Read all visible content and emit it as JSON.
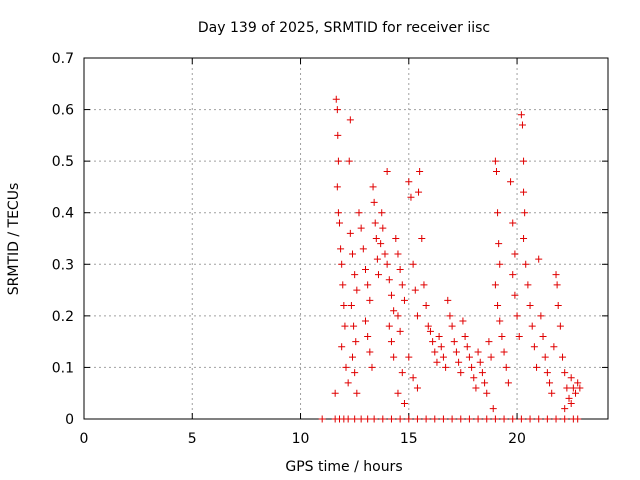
{
  "chart_data": {
    "type": "scatter",
    "title": "Day 139 of 2025, SRMTID for receiver iisc",
    "xlabel": "GPS time / hours",
    "ylabel": "SRMTID / TECUs",
    "xlim": [
      0,
      24.2
    ],
    "ylim": [
      0,
      0.7
    ],
    "xticks": [
      0,
      5,
      10,
      15,
      20
    ],
    "xtick_labels": [
      "0",
      "5",
      "10",
      "15",
      "20"
    ],
    "yticks": [
      0,
      0.1,
      0.2,
      0.3,
      0.4,
      0.5,
      0.6,
      0.7
    ],
    "ytick_labels": [
      "0",
      "0.1",
      "0.2",
      "0.3",
      "0.4",
      "0.5",
      "0.6",
      "0.7"
    ],
    "grid": true,
    "marker": "+",
    "color": "#e00000",
    "series": [
      {
        "name": "SRMTID",
        "points": [
          [
            11.0,
            0.0
          ],
          [
            11.6,
            0.0
          ],
          [
            11.8,
            0.0
          ],
          [
            12.0,
            0.0
          ],
          [
            12.2,
            0.0
          ],
          [
            12.5,
            0.0
          ],
          [
            12.8,
            0.0
          ],
          [
            13.1,
            0.0
          ],
          [
            13.4,
            0.0
          ],
          [
            13.8,
            0.0
          ],
          [
            14.2,
            0.0
          ],
          [
            14.6,
            0.0
          ],
          [
            15.0,
            0.0
          ],
          [
            15.4,
            0.0
          ],
          [
            15.8,
            0.0
          ],
          [
            16.2,
            0.0
          ],
          [
            16.6,
            0.0
          ],
          [
            17.0,
            0.0
          ],
          [
            17.4,
            0.0
          ],
          [
            17.8,
            0.0
          ],
          [
            18.2,
            0.0
          ],
          [
            18.6,
            0.0
          ],
          [
            19.0,
            0.0
          ],
          [
            19.4,
            0.0
          ],
          [
            19.8,
            0.0
          ],
          [
            20.2,
            0.0
          ],
          [
            20.6,
            0.0
          ],
          [
            21.0,
            0.0
          ],
          [
            21.4,
            0.0
          ],
          [
            21.8,
            0.0
          ],
          [
            22.2,
            0.0
          ],
          [
            22.6,
            0.0
          ],
          [
            22.8,
            0.0
          ],
          [
            11.65,
            0.62
          ],
          [
            11.7,
            0.6
          ],
          [
            11.72,
            0.55
          ],
          [
            11.75,
            0.5
          ],
          [
            11.7,
            0.45
          ],
          [
            11.75,
            0.4
          ],
          [
            11.8,
            0.38
          ],
          [
            11.85,
            0.33
          ],
          [
            11.9,
            0.3
          ],
          [
            11.95,
            0.26
          ],
          [
            12.0,
            0.22
          ],
          [
            12.05,
            0.18
          ],
          [
            11.9,
            0.14
          ],
          [
            12.1,
            0.1
          ],
          [
            12.2,
            0.07
          ],
          [
            11.6,
            0.05
          ],
          [
            12.3,
            0.58
          ],
          [
            12.25,
            0.5
          ],
          [
            12.3,
            0.36
          ],
          [
            12.4,
            0.32
          ],
          [
            12.5,
            0.28
          ],
          [
            12.6,
            0.25
          ],
          [
            12.35,
            0.22
          ],
          [
            12.45,
            0.18
          ],
          [
            12.55,
            0.15
          ],
          [
            12.4,
            0.12
          ],
          [
            12.5,
            0.09
          ],
          [
            12.6,
            0.05
          ],
          [
            12.7,
            0.4
          ],
          [
            12.8,
            0.37
          ],
          [
            12.9,
            0.33
          ],
          [
            13.0,
            0.29
          ],
          [
            13.1,
            0.26
          ],
          [
            13.2,
            0.23
          ],
          [
            13.0,
            0.19
          ],
          [
            13.1,
            0.16
          ],
          [
            13.2,
            0.13
          ],
          [
            13.3,
            0.1
          ],
          [
            13.35,
            0.45
          ],
          [
            13.4,
            0.42
          ],
          [
            13.45,
            0.38
          ],
          [
            13.5,
            0.35
          ],
          [
            13.55,
            0.31
          ],
          [
            13.6,
            0.28
          ],
          [
            13.7,
            0.34
          ],
          [
            13.75,
            0.4
          ],
          [
            13.8,
            0.37
          ],
          [
            13.9,
            0.32
          ],
          [
            14.0,
            0.48
          ],
          [
            14.0,
            0.3
          ],
          [
            14.1,
            0.27
          ],
          [
            14.2,
            0.24
          ],
          [
            14.3,
            0.21
          ],
          [
            14.1,
            0.18
          ],
          [
            14.2,
            0.15
          ],
          [
            14.3,
            0.12
          ],
          [
            14.4,
            0.35
          ],
          [
            14.5,
            0.32
          ],
          [
            14.6,
            0.29
          ],
          [
            14.7,
            0.26
          ],
          [
            14.8,
            0.23
          ],
          [
            14.5,
            0.2
          ],
          [
            14.6,
            0.17
          ],
          [
            14.7,
            0.09
          ],
          [
            14.5,
            0.05
          ],
          [
            14.8,
            0.03
          ],
          [
            15.0,
            0.46
          ],
          [
            15.1,
            0.43
          ],
          [
            15.2,
            0.3
          ],
          [
            15.3,
            0.25
          ],
          [
            15.4,
            0.2
          ],
          [
            15.5,
            0.48
          ],
          [
            15.45,
            0.44
          ],
          [
            15.6,
            0.35
          ],
          [
            15.7,
            0.26
          ],
          [
            15.8,
            0.22
          ],
          [
            15.9,
            0.18
          ],
          [
            15.0,
            0.12
          ],
          [
            15.2,
            0.08
          ],
          [
            15.4,
            0.06
          ],
          [
            16.0,
            0.17
          ],
          [
            16.1,
            0.15
          ],
          [
            16.2,
            0.13
          ],
          [
            16.3,
            0.11
          ],
          [
            16.4,
            0.16
          ],
          [
            16.5,
            0.14
          ],
          [
            16.6,
            0.12
          ],
          [
            16.7,
            0.1
          ],
          [
            16.8,
            0.23
          ],
          [
            16.9,
            0.2
          ],
          [
            17.0,
            0.18
          ],
          [
            17.1,
            0.15
          ],
          [
            17.2,
            0.13
          ],
          [
            17.3,
            0.11
          ],
          [
            17.4,
            0.09
          ],
          [
            17.5,
            0.19
          ],
          [
            17.6,
            0.16
          ],
          [
            17.7,
            0.14
          ],
          [
            17.8,
            0.12
          ],
          [
            17.9,
            0.1
          ],
          [
            18.0,
            0.08
          ],
          [
            18.1,
            0.06
          ],
          [
            18.2,
            0.13
          ],
          [
            18.3,
            0.11
          ],
          [
            18.4,
            0.09
          ],
          [
            18.5,
            0.07
          ],
          [
            18.6,
            0.05
          ],
          [
            18.7,
            0.15
          ],
          [
            18.8,
            0.12
          ],
          [
            18.9,
            0.02
          ],
          [
            19.0,
            0.5
          ],
          [
            19.05,
            0.48
          ],
          [
            19.1,
            0.4
          ],
          [
            19.15,
            0.34
          ],
          [
            19.2,
            0.3
          ],
          [
            19.0,
            0.26
          ],
          [
            19.1,
            0.22
          ],
          [
            19.2,
            0.19
          ],
          [
            19.3,
            0.16
          ],
          [
            19.4,
            0.13
          ],
          [
            19.5,
            0.1
          ],
          [
            19.6,
            0.07
          ],
          [
            19.7,
            0.46
          ],
          [
            19.8,
            0.38
          ],
          [
            19.9,
            0.32
          ],
          [
            19.8,
            0.28
          ],
          [
            19.9,
            0.24
          ],
          [
            20.0,
            0.2
          ],
          [
            20.1,
            0.16
          ],
          [
            20.2,
            0.59
          ],
          [
            20.25,
            0.57
          ],
          [
            20.3,
            0.5
          ],
          [
            20.3,
            0.44
          ],
          [
            20.35,
            0.4
          ],
          [
            20.3,
            0.35
          ],
          [
            20.4,
            0.3
          ],
          [
            20.5,
            0.26
          ],
          [
            20.6,
            0.22
          ],
          [
            20.7,
            0.18
          ],
          [
            20.8,
            0.14
          ],
          [
            20.9,
            0.1
          ],
          [
            21.0,
            0.31
          ],
          [
            21.1,
            0.2
          ],
          [
            21.2,
            0.16
          ],
          [
            21.3,
            0.12
          ],
          [
            21.4,
            0.09
          ],
          [
            21.5,
            0.07
          ],
          [
            21.6,
            0.05
          ],
          [
            21.7,
            0.14
          ],
          [
            21.8,
            0.28
          ],
          [
            21.85,
            0.26
          ],
          [
            21.9,
            0.22
          ],
          [
            22.0,
            0.18
          ],
          [
            22.1,
            0.12
          ],
          [
            22.2,
            0.09
          ],
          [
            22.3,
            0.06
          ],
          [
            22.4,
            0.04
          ],
          [
            22.5,
            0.08
          ],
          [
            22.6,
            0.06
          ],
          [
            22.7,
            0.05
          ],
          [
            22.8,
            0.07
          ],
          [
            22.9,
            0.06
          ],
          [
            22.5,
            0.03
          ],
          [
            22.2,
            0.02
          ]
        ]
      }
    ]
  }
}
